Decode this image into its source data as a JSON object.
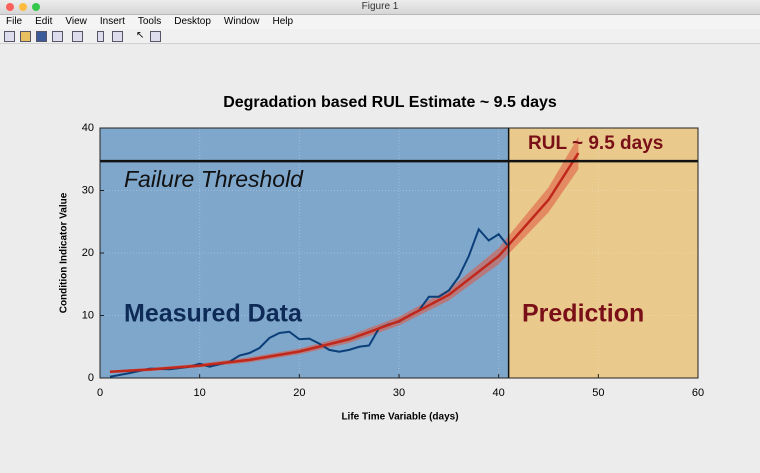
{
  "window": {
    "title": "Figure 1",
    "menu": [
      "File",
      "Edit",
      "View",
      "Insert",
      "Tools",
      "Desktop",
      "Window",
      "Help"
    ]
  },
  "chart_data": {
    "type": "line",
    "title": "Degradation based RUL Estimate ~ 9.5 days",
    "xlabel": "Life Time Variable (days)",
    "ylabel": "Condition Indicator Value",
    "xlim": [
      0,
      60
    ],
    "ylim": [
      0,
      40
    ],
    "xticks": [
      0,
      10,
      20,
      30,
      40,
      50,
      60
    ],
    "yticks": [
      0,
      10,
      20,
      30,
      40
    ],
    "grid": true,
    "regions": [
      {
        "label": "Measured Data",
        "x": [
          0,
          41
        ],
        "color": "#7fa7cb"
      },
      {
        "label": "Prediction",
        "x": [
          41,
          60
        ],
        "color": "#e9c98c"
      }
    ],
    "threshold": {
      "label": "Failure Threshold",
      "value": 34.7,
      "color": "#111111"
    },
    "annotation": "RUL ~ 9.5 days",
    "series": [
      {
        "color": "#0b3f7a",
        "x": [
          1,
          3,
          5,
          7,
          9,
          10,
          11,
          13,
          14,
          15,
          16,
          17,
          18,
          19,
          20,
          21,
          22,
          23,
          24,
          25,
          26,
          27,
          28,
          29,
          30,
          31,
          32,
          33,
          34,
          35,
          36,
          37,
          38,
          39,
          40,
          41
        ],
        "values": [
          0.2,
          0.8,
          1.5,
          1.4,
          1.8,
          2.3,
          1.8,
          2.6,
          3.6,
          4.0,
          4.8,
          6.4,
          7.2,
          7.4,
          6.2,
          6.3,
          5.5,
          4.5,
          4.2,
          4.5,
          5.0,
          5.2,
          8.0,
          8.6,
          9.0,
          10.0,
          10.8,
          13.0,
          13.0,
          14.0,
          16.2,
          19.5,
          23.8,
          22.0,
          23.0,
          21.0
        ]
      },
      {
        "color": "#c0281c",
        "band_color": "#e0553f",
        "x": [
          1,
          5,
          10,
          15,
          20,
          25,
          30,
          35,
          40,
          45,
          48
        ],
        "values": [
          1.0,
          1.36,
          1.98,
          2.9,
          4.24,
          6.2,
          9.1,
          13.3,
          19.5,
          28.5,
          36.0
        ],
        "upper": [
          1.2,
          1.6,
          2.3,
          3.3,
          4.7,
          6.8,
          9.8,
          14.2,
          20.8,
          30.5,
          38.6
        ],
        "lower": [
          0.8,
          1.1,
          1.7,
          2.5,
          3.8,
          5.6,
          8.4,
          12.4,
          18.2,
          26.5,
          33.4
        ]
      }
    ]
  }
}
